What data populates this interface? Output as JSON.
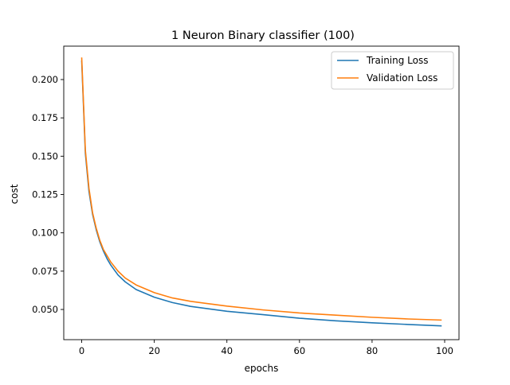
{
  "chart_data": {
    "type": "line",
    "title": "1 Neuron Binary classifier (100)",
    "xlabel": "epochs",
    "ylabel": "cost",
    "xlim": [
      -4.95,
      103.95
    ],
    "ylim": [
      0.0303,
      0.2218
    ],
    "xticks": [
      0,
      20,
      40,
      60,
      80,
      100
    ],
    "yticks": [
      0.05,
      0.075,
      0.1,
      0.125,
      0.15,
      0.175,
      0.2
    ],
    "ytick_labels": [
      "0.050",
      "0.075",
      "0.100",
      "0.125",
      "0.150",
      "0.175",
      "0.200"
    ],
    "grid": false,
    "legend_position": "top-right",
    "series": [
      {
        "name": "Training Loss",
        "color": "#1f77b4",
        "x": [
          0,
          1,
          2,
          3,
          4,
          5,
          6,
          7,
          8,
          10,
          12,
          15,
          20,
          25,
          30,
          40,
          50,
          60,
          70,
          80,
          90,
          99
        ],
        "values": [
          0.212,
          0.152,
          0.127,
          0.112,
          0.102,
          0.094,
          0.088,
          0.083,
          0.079,
          0.0725,
          0.068,
          0.063,
          0.058,
          0.0545,
          0.052,
          0.0488,
          0.0466,
          0.0443,
          0.0426,
          0.0413,
          0.0402,
          0.0393
        ]
      },
      {
        "name": "Validation Loss",
        "color": "#ff7f0e",
        "x": [
          0,
          1,
          2,
          3,
          4,
          5,
          6,
          7,
          8,
          10,
          12,
          15,
          20,
          25,
          30,
          40,
          50,
          60,
          70,
          80,
          90,
          99
        ],
        "values": [
          0.214,
          0.154,
          0.129,
          0.113,
          0.103,
          0.095,
          0.089,
          0.085,
          0.081,
          0.075,
          0.0705,
          0.066,
          0.061,
          0.0575,
          0.0553,
          0.0522,
          0.0497,
          0.0477,
          0.0463,
          0.0449,
          0.0438,
          0.0431
        ]
      }
    ]
  }
}
